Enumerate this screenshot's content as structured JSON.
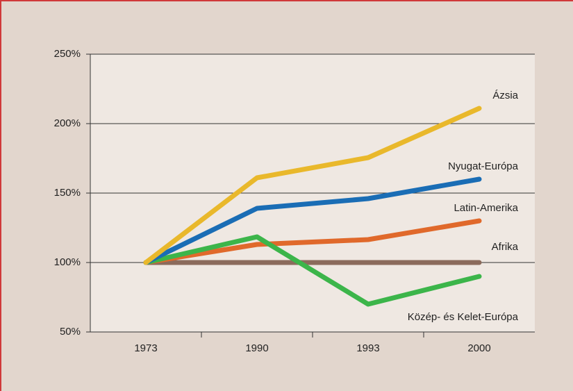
{
  "chart_data": {
    "type": "line",
    "categories": [
      "1973",
      "1990",
      "1993",
      "2000"
    ],
    "series": [
      {
        "name": "Afrika",
        "color": "#8b6b5c",
        "values": [
          100,
          100,
          100,
          100
        ]
      },
      {
        "name": "Latin-Amerika",
        "color": "#e0692b",
        "values": [
          100,
          113,
          116.5,
          130
        ]
      },
      {
        "name": "Közép- és Kelet-Európa",
        "color": "#3cb54a",
        "values": [
          100,
          118.5,
          70,
          90
        ]
      },
      {
        "name": "Nyugat-Európa",
        "color": "#1a6db5",
        "values": [
          100,
          139,
          146,
          160
        ]
      },
      {
        "name": "Ázsia",
        "color": "#e9b82b",
        "values": [
          100,
          161,
          175.5,
          211
        ]
      }
    ],
    "ylim": [
      50,
      250
    ],
    "yticks": [
      {
        "value": 50,
        "label": "50%"
      },
      {
        "value": 100,
        "label": "100%"
      },
      {
        "value": 150,
        "label": "150%"
      },
      {
        "value": 200,
        "label": "200%"
      },
      {
        "value": 250,
        "label": "250%"
      }
    ],
    "grid": true
  }
}
